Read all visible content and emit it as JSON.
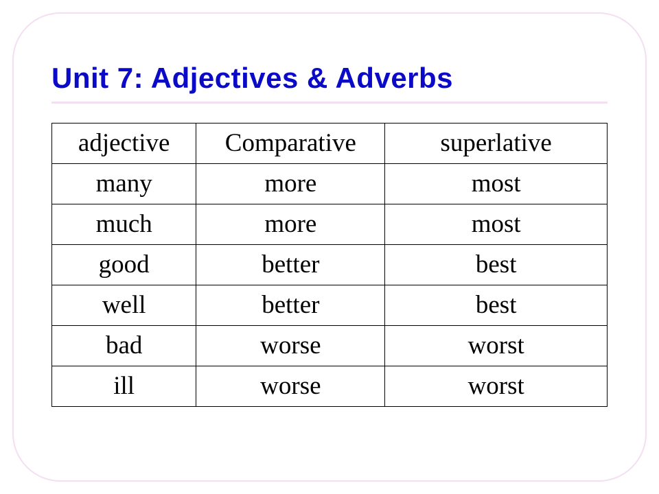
{
  "slide": {
    "title": "Unit 7: Adjectives & Adverbs",
    "title_color": "#0a0ac7",
    "title_font": "Comic Sans MS",
    "title_fontsize": 42,
    "underline_color": "#f3dff0",
    "frame_border_color": "#f3dff0",
    "frame_border_radius": 70,
    "background_color": "#ffffff"
  },
  "table": {
    "type": "table",
    "border_color": "#000000",
    "cell_fontsize": 37,
    "cell_color": "#000000",
    "cell_align": "center",
    "column_widths_pct": [
      26,
      34,
      40
    ],
    "columns": [
      "adjective",
      "Comparative",
      "superlative"
    ],
    "rows": [
      [
        "many",
        "more",
        "most"
      ],
      [
        "much",
        "more",
        "most"
      ],
      [
        "good",
        "better",
        "best"
      ],
      [
        "well",
        "better",
        "best"
      ],
      [
        "bad",
        "worse",
        "worst"
      ],
      [
        "ill",
        "worse",
        "worst"
      ]
    ]
  }
}
